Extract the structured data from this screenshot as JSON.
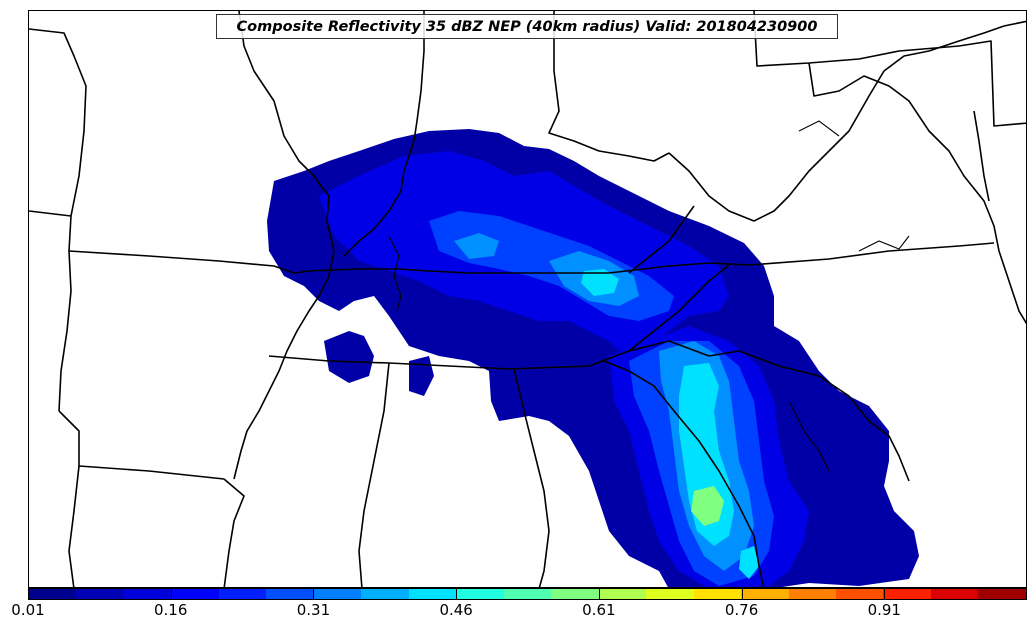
{
  "title": "Composite Reflectivity 35 dBZ NEP (40km radius) Valid: 201804230900",
  "colorbar": {
    "colors": [
      "#00008f",
      "#0000b4",
      "#0000db",
      "#0000ff",
      "#0020ff",
      "#0050ff",
      "#0080ff",
      "#00b0ff",
      "#00e0ff",
      "#20ffdf",
      "#50ffaf",
      "#80ff80",
      "#b0ff50",
      "#dfff20",
      "#ffe000",
      "#ffb000",
      "#ff8000",
      "#ff5000",
      "#ff2000",
      "#db0000",
      "#9f0000"
    ],
    "tick_labels": [
      "0.01",
      "0.16",
      "0.31",
      "0.46",
      "0.61",
      "0.76",
      "0.91"
    ]
  },
  "legend_levels": [
    0.01,
    0.91
  ]
}
